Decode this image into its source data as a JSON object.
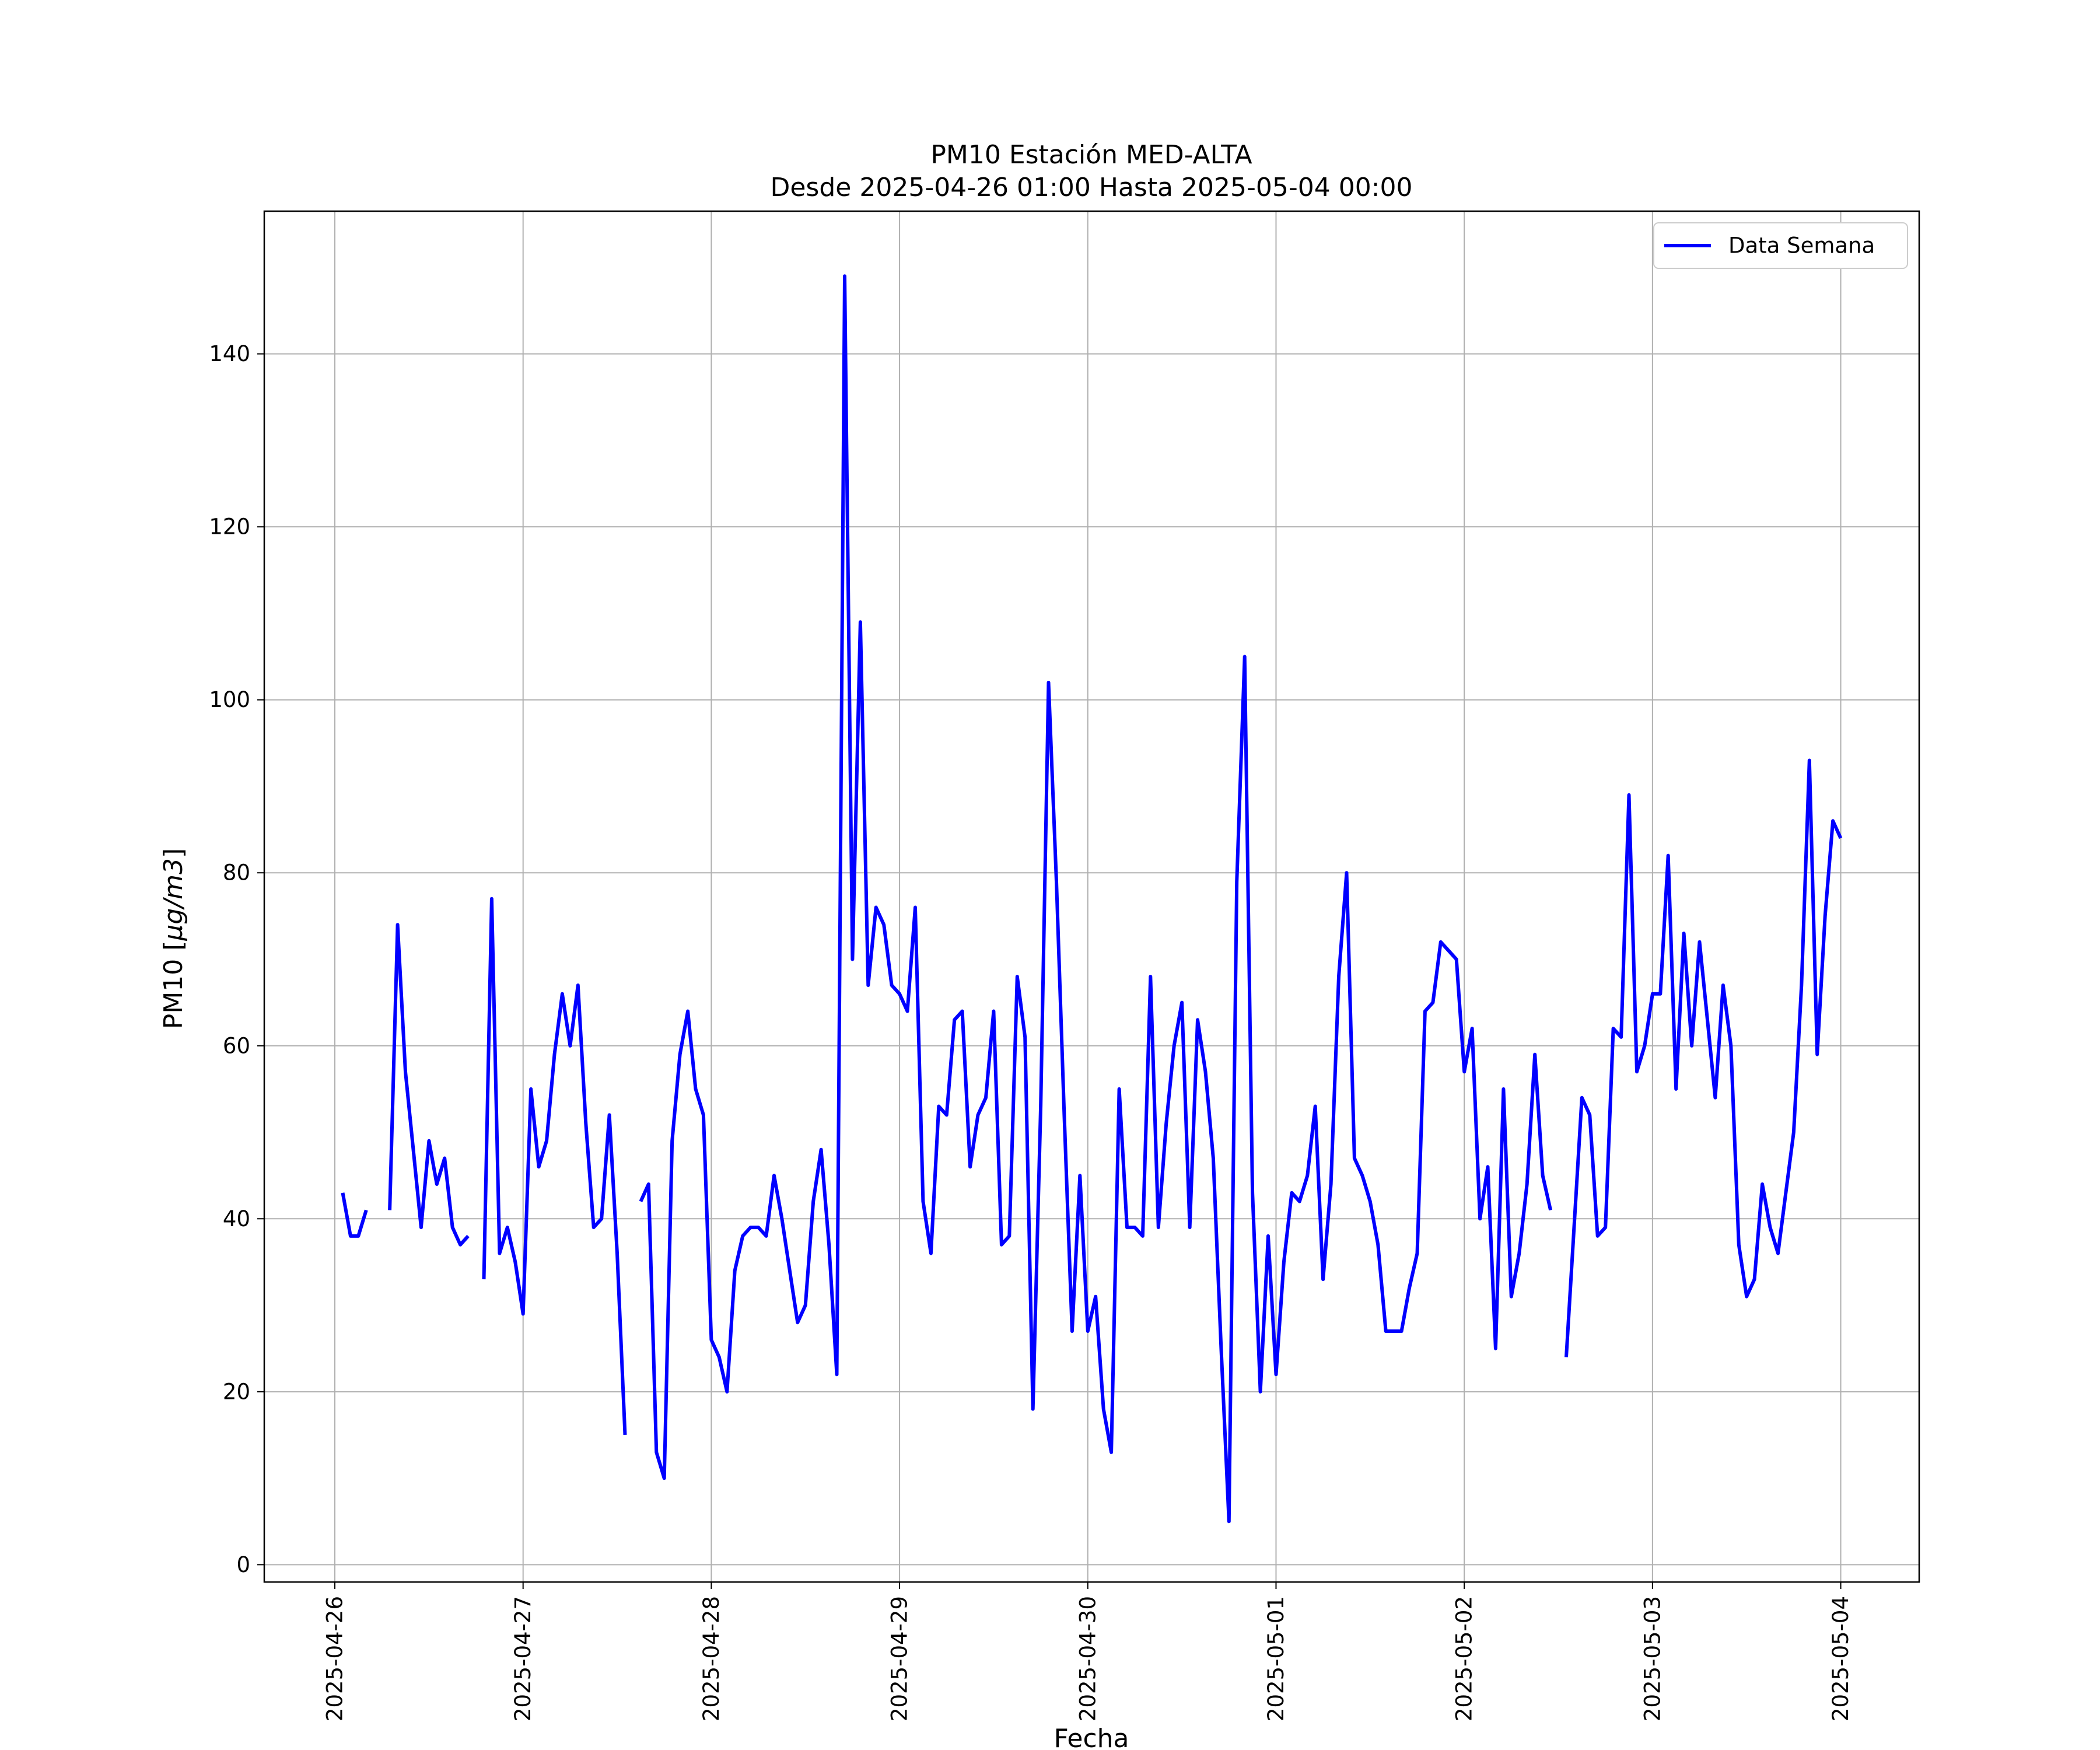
{
  "chart_data": {
    "type": "line",
    "title": "PM10 Estación MED-ALTA",
    "subtitle": "Desde 2025-04-26 01:00 Hasta 2025-05-04 00:00",
    "xlabel": "Fecha",
    "ylabel_prefix": "PM10 [",
    "ylabel_unit": "μg/m3",
    "ylabel_suffix": "]",
    "ylim": [
      -2,
      156.5
    ],
    "xlim": [
      "2025-04-25T15:00",
      "2025-05-04T10:00"
    ],
    "x_ticks": [
      "2025-04-26",
      "2025-04-27",
      "2025-04-28",
      "2025-04-29",
      "2025-04-30",
      "2025-05-01",
      "2025-05-02",
      "2025-05-03",
      "2025-05-04"
    ],
    "y_ticks": [
      0,
      20,
      40,
      60,
      80,
      100,
      120,
      140
    ],
    "grid": true,
    "legend_position": "top-right",
    "series": [
      {
        "name": "Data Semana",
        "color": "#0000ff",
        "points": [
          [
            "2025-04-26T01:00",
            43
          ],
          [
            "2025-04-26T02:00",
            38
          ],
          [
            "2025-04-26T03:00",
            38
          ],
          [
            "2025-04-26T04:00",
            41
          ],
          [
            "2025-04-26T05:00",
            null
          ],
          [
            "2025-04-26T07:00",
            41
          ],
          [
            "2025-04-26T08:00",
            74
          ],
          [
            "2025-04-26T09:00",
            57
          ],
          [
            "2025-04-26T10:00",
            48
          ],
          [
            "2025-04-26T11:00",
            39
          ],
          [
            "2025-04-26T12:00",
            49
          ],
          [
            "2025-04-26T13:00",
            44
          ],
          [
            "2025-04-26T14:00",
            47
          ],
          [
            "2025-04-26T15:00",
            39
          ],
          [
            "2025-04-26T16:00",
            37
          ],
          [
            "2025-04-26T17:00",
            38
          ],
          [
            "2025-04-26T18:00",
            null
          ],
          [
            "2025-04-26T19:00",
            33
          ],
          [
            "2025-04-26T20:00",
            77
          ],
          [
            "2025-04-26T21:00",
            36
          ],
          [
            "2025-04-26T22:00",
            39
          ],
          [
            "2025-04-26T23:00",
            35
          ],
          [
            "2025-04-27T00:00",
            29
          ],
          [
            "2025-04-27T01:00",
            55
          ],
          [
            "2025-04-27T02:00",
            46
          ],
          [
            "2025-04-27T03:00",
            49
          ],
          [
            "2025-04-27T04:00",
            59
          ],
          [
            "2025-04-27T05:00",
            66
          ],
          [
            "2025-04-27T06:00",
            60
          ],
          [
            "2025-04-27T07:00",
            67
          ],
          [
            "2025-04-27T08:00",
            51
          ],
          [
            "2025-04-27T09:00",
            39
          ],
          [
            "2025-04-27T10:00",
            40
          ],
          [
            "2025-04-27T11:00",
            52
          ],
          [
            "2025-04-27T12:00",
            36
          ],
          [
            "2025-04-27T13:00",
            15
          ],
          [
            "2025-04-27T14:00",
            null
          ],
          [
            "2025-04-27T15:00",
            42
          ],
          [
            "2025-04-27T16:00",
            44
          ],
          [
            "2025-04-27T17:00",
            13
          ],
          [
            "2025-04-27T18:00",
            10
          ],
          [
            "2025-04-27T19:00",
            49
          ],
          [
            "2025-04-27T20:00",
            59
          ],
          [
            "2025-04-27T21:00",
            64
          ],
          [
            "2025-04-27T22:00",
            55
          ],
          [
            "2025-04-27T23:00",
            52
          ],
          [
            "2025-04-28T00:00",
            26
          ],
          [
            "2025-04-28T01:00",
            24
          ],
          [
            "2025-04-28T02:00",
            20
          ],
          [
            "2025-04-28T03:00",
            34
          ],
          [
            "2025-04-28T04:00",
            38
          ],
          [
            "2025-04-28T05:00",
            39
          ],
          [
            "2025-04-28T06:00",
            39
          ],
          [
            "2025-04-28T07:00",
            38
          ],
          [
            "2025-04-28T08:00",
            45
          ],
          [
            "2025-04-28T09:00",
            40
          ],
          [
            "2025-04-28T10:00",
            34
          ],
          [
            "2025-04-28T11:00",
            28
          ],
          [
            "2025-04-28T12:00",
            30
          ],
          [
            "2025-04-28T13:00",
            42
          ],
          [
            "2025-04-28T14:00",
            48
          ],
          [
            "2025-04-28T15:00",
            37
          ],
          [
            "2025-04-28T16:00",
            22
          ],
          [
            "2025-04-28T17:00",
            149
          ],
          [
            "2025-04-28T18:00",
            70
          ],
          [
            "2025-04-28T19:00",
            109
          ],
          [
            "2025-04-28T20:00",
            67
          ],
          [
            "2025-04-28T21:00",
            76
          ],
          [
            "2025-04-28T22:00",
            74
          ],
          [
            "2025-04-28T23:00",
            67
          ],
          [
            "2025-04-29T00:00",
            66
          ],
          [
            "2025-04-29T01:00",
            64
          ],
          [
            "2025-04-29T02:00",
            76
          ],
          [
            "2025-04-29T03:00",
            42
          ],
          [
            "2025-04-29T04:00",
            36
          ],
          [
            "2025-04-29T05:00",
            53
          ],
          [
            "2025-04-29T06:00",
            52
          ],
          [
            "2025-04-29T07:00",
            63
          ],
          [
            "2025-04-29T08:00",
            64
          ],
          [
            "2025-04-29T09:00",
            46
          ],
          [
            "2025-04-29T10:00",
            52
          ],
          [
            "2025-04-29T11:00",
            54
          ],
          [
            "2025-04-29T12:00",
            64
          ],
          [
            "2025-04-29T13:00",
            37
          ],
          [
            "2025-04-29T14:00",
            38
          ],
          [
            "2025-04-29T15:00",
            68
          ],
          [
            "2025-04-29T16:00",
            61
          ],
          [
            "2025-04-29T17:00",
            18
          ],
          [
            "2025-04-29T18:00",
            53
          ],
          [
            "2025-04-29T19:00",
            102
          ],
          [
            "2025-04-29T20:00",
            79
          ],
          [
            "2025-04-29T21:00",
            52
          ],
          [
            "2025-04-29T22:00",
            27
          ],
          [
            "2025-04-29T23:00",
            45
          ],
          [
            "2025-04-30T00:00",
            27
          ],
          [
            "2025-04-30T01:00",
            31
          ],
          [
            "2025-04-30T02:00",
            18
          ],
          [
            "2025-04-30T03:00",
            13
          ],
          [
            "2025-04-30T04:00",
            55
          ],
          [
            "2025-04-30T05:00",
            39
          ],
          [
            "2025-04-30T06:00",
            39
          ],
          [
            "2025-04-30T07:00",
            38
          ],
          [
            "2025-04-30T08:00",
            68
          ],
          [
            "2025-04-30T09:00",
            39
          ],
          [
            "2025-04-30T10:00",
            51
          ],
          [
            "2025-04-30T11:00",
            60
          ],
          [
            "2025-04-30T12:00",
            65
          ],
          [
            "2025-04-30T13:00",
            39
          ],
          [
            "2025-04-30T14:00",
            63
          ],
          [
            "2025-04-30T15:00",
            57
          ],
          [
            "2025-04-30T16:00",
            47
          ],
          [
            "2025-04-30T17:00",
            25
          ],
          [
            "2025-04-30T18:00",
            5
          ],
          [
            "2025-04-30T19:00",
            79
          ],
          [
            "2025-04-30T20:00",
            105
          ],
          [
            "2025-04-30T21:00",
            43
          ],
          [
            "2025-04-30T22:00",
            20
          ],
          [
            "2025-04-30T23:00",
            38
          ],
          [
            "2025-05-01T00:00",
            22
          ],
          [
            "2025-05-01T01:00",
            35
          ],
          [
            "2025-05-01T02:00",
            43
          ],
          [
            "2025-05-01T03:00",
            42
          ],
          [
            "2025-05-01T04:00",
            45
          ],
          [
            "2025-05-01T05:00",
            53
          ],
          [
            "2025-05-01T06:00",
            33
          ],
          [
            "2025-05-01T07:00",
            44
          ],
          [
            "2025-05-01T08:00",
            68
          ],
          [
            "2025-05-01T09:00",
            80
          ],
          [
            "2025-05-01T10:00",
            47
          ],
          [
            "2025-05-01T11:00",
            45
          ],
          [
            "2025-05-01T12:00",
            42
          ],
          [
            "2025-05-01T13:00",
            37
          ],
          [
            "2025-05-01T14:00",
            27
          ],
          [
            "2025-05-01T15:00",
            27
          ],
          [
            "2025-05-01T16:00",
            27
          ],
          [
            "2025-05-01T17:00",
            32
          ],
          [
            "2025-05-01T18:00",
            36
          ],
          [
            "2025-05-01T19:00",
            64
          ],
          [
            "2025-05-01T20:00",
            65
          ],
          [
            "2025-05-01T21:00",
            72
          ],
          [
            "2025-05-01T22:00",
            71
          ],
          [
            "2025-05-01T23:00",
            70
          ],
          [
            "2025-05-02T00:00",
            57
          ],
          [
            "2025-05-02T01:00",
            62
          ],
          [
            "2025-05-02T02:00",
            40
          ],
          [
            "2025-05-02T03:00",
            46
          ],
          [
            "2025-05-02T04:00",
            25
          ],
          [
            "2025-05-02T05:00",
            55
          ],
          [
            "2025-05-02T06:00",
            31
          ],
          [
            "2025-05-02T07:00",
            36
          ],
          [
            "2025-05-02T08:00",
            44
          ],
          [
            "2025-05-02T09:00",
            59
          ],
          [
            "2025-05-02T10:00",
            45
          ],
          [
            "2025-05-02T11:00",
            41
          ],
          [
            "2025-05-02T12:00",
            null
          ],
          [
            "2025-05-02T13:00",
            24
          ],
          [
            "2025-05-02T14:00",
            39
          ],
          [
            "2025-05-02T15:00",
            54
          ],
          [
            "2025-05-02T16:00",
            52
          ],
          [
            "2025-05-02T17:00",
            38
          ],
          [
            "2025-05-02T18:00",
            39
          ],
          [
            "2025-05-02T19:00",
            62
          ],
          [
            "2025-05-02T20:00",
            61
          ],
          [
            "2025-05-02T21:00",
            89
          ],
          [
            "2025-05-02T22:00",
            57
          ],
          [
            "2025-05-02T23:00",
            60
          ],
          [
            "2025-05-03T00:00",
            66
          ],
          [
            "2025-05-03T01:00",
            66
          ],
          [
            "2025-05-03T02:00",
            82
          ],
          [
            "2025-05-03T03:00",
            55
          ],
          [
            "2025-05-03T04:00",
            73
          ],
          [
            "2025-05-03T05:00",
            60
          ],
          [
            "2025-05-03T06:00",
            72
          ],
          [
            "2025-05-03T07:00",
            63
          ],
          [
            "2025-05-03T08:00",
            54
          ],
          [
            "2025-05-03T09:00",
            67
          ],
          [
            "2025-05-03T10:00",
            60
          ],
          [
            "2025-05-03T11:00",
            37
          ],
          [
            "2025-05-03T12:00",
            31
          ],
          [
            "2025-05-03T13:00",
            33
          ],
          [
            "2025-05-03T14:00",
            44
          ],
          [
            "2025-05-03T15:00",
            39
          ],
          [
            "2025-05-03T16:00",
            36
          ],
          [
            "2025-05-03T17:00",
            43
          ],
          [
            "2025-05-03T18:00",
            50
          ],
          [
            "2025-05-03T19:00",
            67
          ],
          [
            "2025-05-03T20:00",
            93
          ],
          [
            "2025-05-03T21:00",
            59
          ],
          [
            "2025-05-03T22:00",
            75
          ],
          [
            "2025-05-03T23:00",
            86
          ],
          [
            "2025-05-04T00:00",
            84
          ]
        ]
      }
    ]
  }
}
